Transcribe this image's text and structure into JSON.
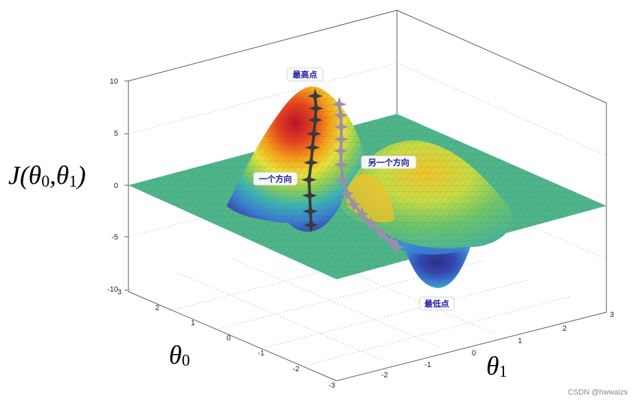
{
  "chart_data": {
    "type": "surface",
    "z_label": {
      "main": "J(θ",
      "sub0": "0",
      "mid": ",θ",
      "sub1": "1",
      "end": ")"
    },
    "x_label": {
      "main": "θ",
      "sub": "0"
    },
    "y_label": {
      "main": "θ",
      "sub": "1"
    },
    "z_ticks": [
      "10",
      "5",
      "0",
      "-5",
      "-10"
    ],
    "z_range": [
      -10,
      10
    ],
    "x_ticks": [
      "3",
      "2",
      "1",
      "0",
      "-1",
      "-2",
      "-3"
    ],
    "y_ticks": [
      "-2",
      "-1",
      "0",
      "1",
      "2",
      "3"
    ],
    "x_range": [
      -3,
      3
    ],
    "y_range": [
      -3,
      3
    ],
    "grid": true,
    "colormap": "jet",
    "annotations": {
      "peak": "最高点",
      "trough": "最低点",
      "path_a": "一个方向",
      "path_b": "另一个方向"
    },
    "peak_value": 8.5,
    "trough_value": -7
  },
  "colors": {
    "path_a": "#3a3a3a",
    "path_b": "#9a8faa",
    "callout_text": "#1a1aa8",
    "plane": "#4fb58a"
  },
  "watermark": "CSDN @hwwaizs"
}
